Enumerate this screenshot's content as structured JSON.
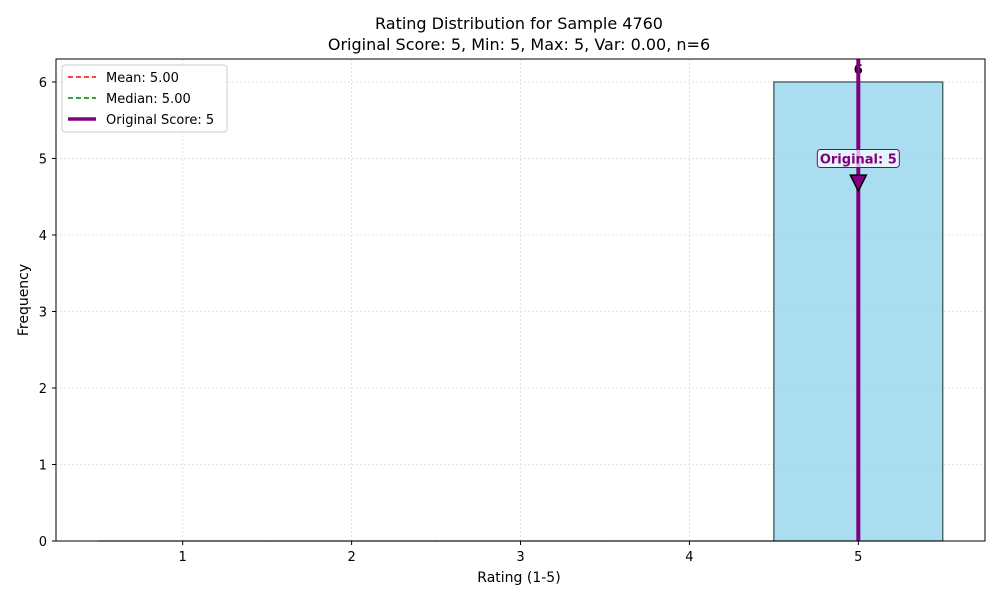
{
  "chart_data": {
    "type": "bar",
    "title": "Rating Distribution for Sample 4760",
    "subtitle": "Original Score: 5, Min: 5, Max: 5, Var: 0.00, n=6",
    "xlabel": "Rating (1-5)",
    "ylabel": "Frequency",
    "categories": [
      1,
      2,
      3,
      4,
      5
    ],
    "values": [
      0,
      0,
      0,
      0,
      6
    ],
    "value_labels": [
      "",
      "",
      "",
      "",
      "6"
    ],
    "xlim": [
      0.25,
      5.75
    ],
    "ylim": [
      0,
      6.3
    ],
    "x_ticks": [
      "1",
      "2",
      "3",
      "4",
      "5"
    ],
    "y_ticks": [
      "0",
      "1",
      "2",
      "3",
      "4",
      "5",
      "6"
    ],
    "grid": true,
    "bar_color": "#87ceeb",
    "bar_edge_color": "#2f4f4f",
    "mean": 5.0,
    "median": 5.0,
    "original_score": 5,
    "legend_position": "top-left",
    "legend": [
      {
        "label": "Mean: 5.00",
        "color": "#ff0000",
        "style": "dashed"
      },
      {
        "label": "Median: 5.00",
        "color": "#008000",
        "style": "dashed"
      },
      {
        "label": "Original Score: 5",
        "color": "#800080",
        "style": "solid"
      }
    ],
    "annotation": {
      "text": "Original: 5",
      "x": 5,
      "y": 5.0,
      "arrow_to_y": 4.6,
      "color": "#800080"
    }
  }
}
